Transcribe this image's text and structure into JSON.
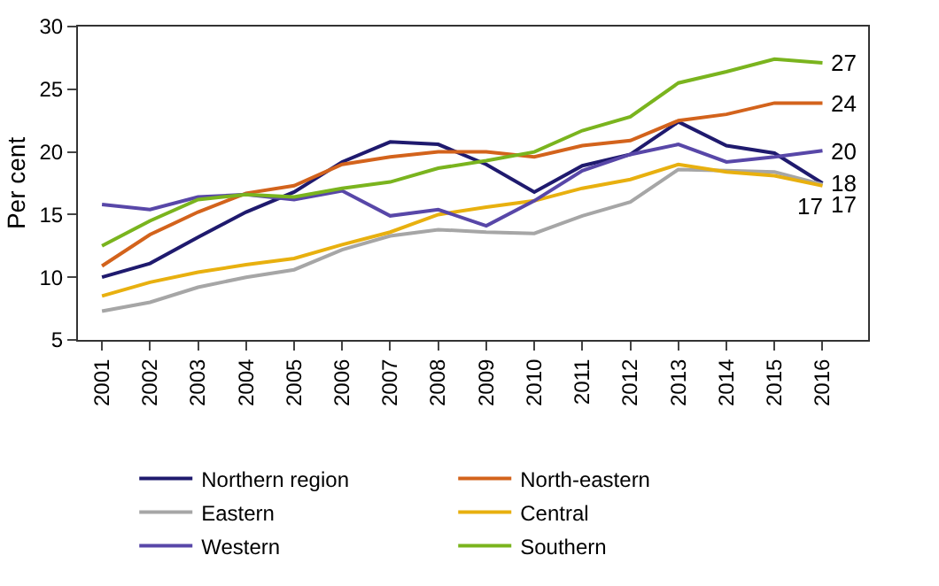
{
  "chart_data": {
    "type": "line",
    "ylabel": "Per cent",
    "categories": [
      "2001",
      "2002",
      "2003",
      "2004",
      "2005",
      "2006",
      "2007",
      "2008",
      "2009",
      "2010",
      "2011",
      "2012",
      "2013",
      "2014",
      "2015",
      "2016"
    ],
    "series": [
      {
        "name": "Northern region",
        "color": "#1f1a6e",
        "values": [
          10.0,
          11.1,
          13.2,
          15.2,
          16.8,
          19.2,
          20.8,
          20.6,
          19.0,
          16.8,
          18.9,
          19.8,
          22.4,
          20.5,
          19.9,
          17.5
        ]
      },
      {
        "name": "North-eastern",
        "color": "#d3631c",
        "values": [
          10.9,
          13.4,
          15.2,
          16.7,
          17.3,
          19.0,
          19.6,
          20.0,
          20.0,
          19.6,
          20.5,
          20.9,
          22.5,
          23.0,
          23.9,
          23.9
        ]
      },
      {
        "name": "Eastern",
        "color": "#a6a6a6",
        "values": [
          7.3,
          8.0,
          9.2,
          10.0,
          10.6,
          12.2,
          13.3,
          13.8,
          13.6,
          13.5,
          14.9,
          16.0,
          18.6,
          18.5,
          18.4,
          17.4
        ]
      },
      {
        "name": "Central",
        "color": "#e8b00f",
        "values": [
          8.5,
          9.6,
          10.4,
          11.0,
          11.5,
          12.6,
          13.6,
          15.0,
          15.6,
          16.1,
          17.1,
          17.8,
          19.0,
          18.4,
          18.1,
          17.3
        ]
      },
      {
        "name": "Western",
        "color": "#5847a8",
        "values": [
          15.8,
          15.4,
          16.4,
          16.6,
          16.2,
          16.9,
          14.9,
          15.4,
          14.1,
          16.1,
          18.5,
          19.8,
          20.6,
          19.2,
          19.6,
          20.1
        ]
      },
      {
        "name": "Southern",
        "color": "#7ab41e",
        "values": [
          12.5,
          14.5,
          16.2,
          16.6,
          16.4,
          17.1,
          17.6,
          18.7,
          19.3,
          20.0,
          21.7,
          22.8,
          25.5,
          26.4,
          27.4,
          27.1
        ]
      }
    ],
    "annotations": [
      {
        "text": "18",
        "x": "2016",
        "y": 17.5
      },
      {
        "text": "24",
        "x": "2016",
        "y": 23.9
      },
      {
        "text": "17",
        "x": "2016",
        "y": 17.4
      },
      {
        "text": "17",
        "x": "2016",
        "y": 17.3
      },
      {
        "text": "20",
        "x": "2016",
        "y": 20.1
      },
      {
        "text": "27",
        "x": "2016",
        "y": 27.1
      }
    ],
    "ylim": [
      5,
      30
    ],
    "yticks": [
      5,
      10,
      15,
      20,
      25,
      30
    ],
    "grid": false,
    "legend": "bottom",
    "marker": "none",
    "line_style": "solid"
  }
}
